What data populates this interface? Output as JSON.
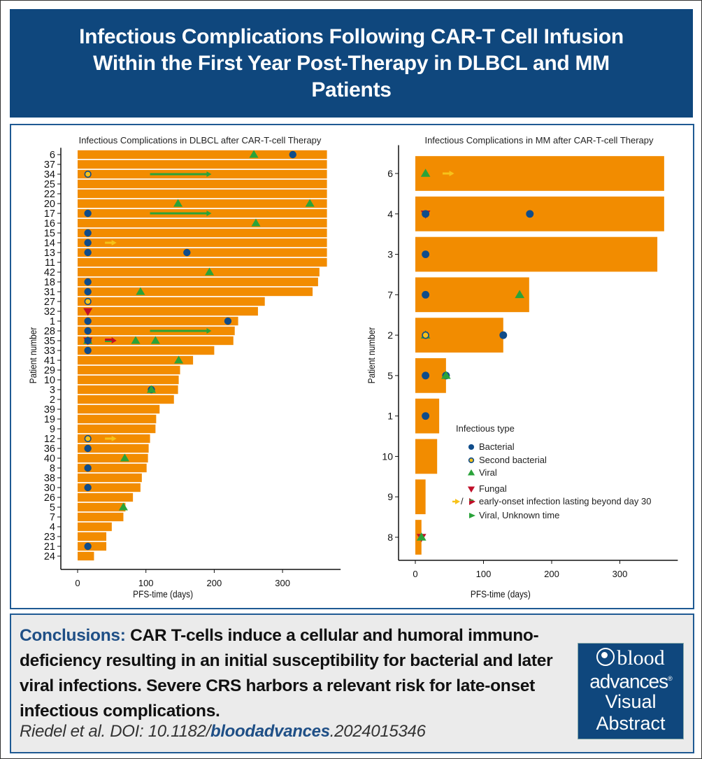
{
  "header": {
    "title": "Infectious Complications Following CAR-T Cell Infusion Within the First Year Post-Therapy in DLBCL and MM Patients"
  },
  "colors": {
    "header_bg": "#0f477d",
    "bar": "#f28c00",
    "bacterial": "#0f4c8a",
    "second_bacterial_fill": "#f7c21a",
    "second_bacterial_stroke": "#0f4c8a",
    "viral": "#2aa33a",
    "fungal": "#c0102a",
    "early_onset_arrow": "#f7c21a",
    "viral_unknown_arrow": "#2aa33a"
  },
  "chart_data": [
    {
      "type": "bar",
      "orientation": "horizontal",
      "title": "Infectious Complications in DLBCL after CAR-T-cell Therapy",
      "xlabel": "PFS-time (days)",
      "ylabel": "Patient number",
      "xlim": [
        -10,
        385
      ],
      "xticks": [
        0,
        100,
        200,
        300
      ],
      "grid": false,
      "categories": [
        "6",
        "37",
        "34",
        "25",
        "22",
        "20",
        "17",
        "16",
        "15",
        "14",
        "13",
        "11",
        "42",
        "18",
        "31",
        "27",
        "32",
        "1",
        "28",
        "35",
        "33",
        "41",
        "29",
        "10",
        "3",
        "2",
        "39",
        "19",
        "9",
        "12",
        "36",
        "40",
        "8",
        "38",
        "30",
        "26",
        "5",
        "7",
        "4",
        "23",
        "21",
        "24"
      ],
      "values": [
        365,
        365,
        365,
        365,
        365,
        365,
        365,
        365,
        365,
        365,
        365,
        365,
        354,
        352,
        344,
        274,
        264,
        235,
        230,
        228,
        200,
        169,
        150,
        148,
        147,
        141,
        120,
        115,
        114,
        106,
        104,
        103,
        101,
        94,
        92,
        81,
        70,
        67,
        50,
        42,
        42,
        24
      ],
      "events": [
        {
          "patient": "6",
          "type": "viral",
          "day": 258
        },
        {
          "patient": "6",
          "type": "bacterial",
          "day": 315
        },
        {
          "patient": "34",
          "type": "second_bacterial",
          "day": 15
        },
        {
          "patient": "34",
          "type": "viral_unknown_arrow",
          "from": 106,
          "to": 196
        },
        {
          "patient": "20",
          "type": "viral",
          "day": 147
        },
        {
          "patient": "20",
          "type": "viral",
          "day": 340
        },
        {
          "patient": "17",
          "type": "bacterial",
          "day": 15
        },
        {
          "patient": "17",
          "type": "viral_unknown_arrow",
          "from": 106,
          "to": 196
        },
        {
          "patient": "16",
          "type": "viral",
          "day": 261
        },
        {
          "patient": "15",
          "type": "bacterial",
          "day": 15
        },
        {
          "patient": "14",
          "type": "bacterial",
          "day": 15
        },
        {
          "patient": "14",
          "type": "early_onset_arrow",
          "from": 40,
          "to": 57
        },
        {
          "patient": "13",
          "type": "bacterial",
          "day": 15
        },
        {
          "patient": "13",
          "type": "bacterial",
          "day": 160
        },
        {
          "patient": "42",
          "type": "viral",
          "day": 193
        },
        {
          "patient": "18",
          "type": "bacterial",
          "day": 15
        },
        {
          "patient": "31",
          "type": "bacterial",
          "day": 15
        },
        {
          "patient": "31",
          "type": "viral",
          "day": 92
        },
        {
          "patient": "27",
          "type": "second_bacterial",
          "day": 15
        },
        {
          "patient": "32",
          "type": "fungal",
          "day": 15
        },
        {
          "patient": "1",
          "type": "bacterial",
          "day": 15
        },
        {
          "patient": "1",
          "type": "bacterial",
          "day": 220
        },
        {
          "patient": "28",
          "type": "bacterial",
          "day": 15
        },
        {
          "patient": "28",
          "type": "viral_unknown_arrow",
          "from": 106,
          "to": 196
        },
        {
          "patient": "35",
          "type": "viral",
          "day": 15
        },
        {
          "patient": "35",
          "type": "fungal",
          "day": 15
        },
        {
          "patient": "35",
          "type": "bacterial",
          "day": 15
        },
        {
          "patient": "35",
          "type": "fungal_early_onset_arrow",
          "from": 40,
          "to": 57
        },
        {
          "patient": "35",
          "type": "viral",
          "day": 85
        },
        {
          "patient": "35",
          "type": "viral",
          "day": 114
        },
        {
          "patient": "33",
          "type": "bacterial",
          "day": 15
        },
        {
          "patient": "41",
          "type": "viral",
          "day": 148
        },
        {
          "patient": "3",
          "type": "bacterial",
          "day": 108
        },
        {
          "patient": "3",
          "type": "viral",
          "day": 108
        },
        {
          "patient": "12",
          "type": "second_bacterial",
          "day": 15
        },
        {
          "patient": "12",
          "type": "early_onset_arrow",
          "from": 40,
          "to": 57
        },
        {
          "patient": "36",
          "type": "bacterial",
          "day": 15
        },
        {
          "patient": "40",
          "type": "viral",
          "day": 69
        },
        {
          "patient": "8",
          "type": "bacterial",
          "day": 15
        },
        {
          "patient": "30",
          "type": "bacterial",
          "day": 15
        },
        {
          "patient": "5",
          "type": "viral",
          "day": 67
        },
        {
          "patient": "21",
          "type": "bacterial",
          "day": 15
        }
      ]
    },
    {
      "type": "bar",
      "orientation": "horizontal",
      "title": "Infectious Complications in MM after CAR-T-cell Therapy",
      "xlabel": "PFS-time (days)",
      "ylabel": "Patient number",
      "xlim": [
        -10,
        385
      ],
      "xticks": [
        0,
        100,
        200,
        300
      ],
      "grid": false,
      "categories": [
        "6",
        "4",
        "3",
        "7",
        "2",
        "5",
        "1",
        "10",
        "9",
        "8"
      ],
      "values": [
        365,
        365,
        355,
        167,
        129,
        45,
        35,
        32,
        15,
        9
      ],
      "events": [
        {
          "patient": "6",
          "type": "viral",
          "day": 15
        },
        {
          "patient": "6",
          "type": "early_onset_arrow",
          "from": 40,
          "to": 57
        },
        {
          "patient": "4",
          "type": "fungal",
          "day": 15
        },
        {
          "patient": "4",
          "type": "bacterial",
          "day": 15
        },
        {
          "patient": "4",
          "type": "bacterial",
          "day": 168
        },
        {
          "patient": "3",
          "type": "bacterial",
          "day": 15
        },
        {
          "patient": "7",
          "type": "bacterial",
          "day": 15
        },
        {
          "patient": "7",
          "type": "viral",
          "day": 153
        },
        {
          "patient": "2",
          "type": "viral",
          "day": 15
        },
        {
          "patient": "2",
          "type": "second_bacterial",
          "day": 15
        },
        {
          "patient": "2",
          "type": "bacterial",
          "day": 129
        },
        {
          "patient": "5",
          "type": "bacterial",
          "day": 15
        },
        {
          "patient": "5",
          "type": "bacterial",
          "day": 45
        },
        {
          "patient": "5",
          "type": "viral",
          "day": 45
        },
        {
          "patient": "1",
          "type": "bacterial",
          "day": 15
        },
        {
          "patient": "8",
          "type": "fungal",
          "day": 9
        },
        {
          "patient": "8",
          "type": "viral",
          "day": 9
        }
      ],
      "legend": {
        "title": "Infectious type",
        "placement": "center-right",
        "items": [
          {
            "type": "bacterial",
            "label": "Bacterial"
          },
          {
            "type": "second_bacterial",
            "label": "Second bacterial"
          },
          {
            "type": "viral",
            "label": "Viral"
          },
          {
            "type": "fungal",
            "label": "Fungal"
          },
          {
            "type": "early_onset_arrow",
            "label": "early-onset infection lasting beyond day 30",
            "separator": "/"
          },
          {
            "type": "viral_unknown_arrow",
            "label": "Viral, Unknown time"
          }
        ]
      }
    }
  ],
  "conclusions": {
    "label": "Conclusions:",
    "text": "CAR T-cells induce a cellular and humoral immuno-deficiency resulting in an initial susceptibility for bacterial and later viral infections. Severe CRS harbors a relevant risk for late-onset infectious complications.",
    "citation_prefix": "Riedel et al. DOI: 10.1182/",
    "citation_journal": "bloodadvances",
    "citation_suffix": ".2024015346"
  },
  "logo": {
    "line1": "blood",
    "line2": "advances",
    "registered": "®",
    "line3": "Visual",
    "line4": "Abstract"
  }
}
